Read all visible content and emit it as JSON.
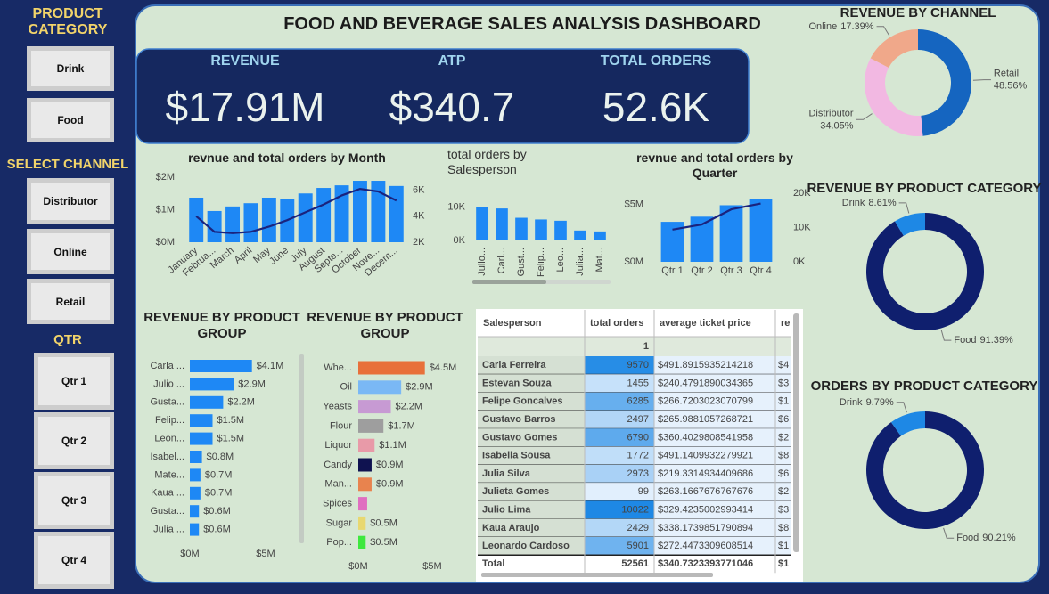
{
  "sidebar": {
    "groups": [
      {
        "title": "PRODUCT CATEGORY",
        "buttons": [
          "Drink",
          "Food"
        ]
      },
      {
        "title": "SELECT CHANNEL",
        "buttons": [
          "Distributor",
          "Online",
          "Retail"
        ]
      },
      {
        "title": "QTR",
        "buttons": [
          "Qtr 1",
          "Qtr 2",
          "Qtr 3",
          "Qtr 4"
        ]
      }
    ]
  },
  "header": {
    "title": "FOOD AND BEVERAGE SALES ANALYSIS DASHBOARD"
  },
  "kpis": [
    {
      "label": "REVENUE",
      "value": "$17.91M"
    },
    {
      "label": "ATP",
      "value": "$340.7"
    },
    {
      "label": "TOTAL ORDERS",
      "value": "52.6K"
    }
  ],
  "chart_data": [
    {
      "type": "combo",
      "title": "revnue and total orders by Month",
      "categories": [
        "January",
        "Februa...",
        "March",
        "April",
        "May",
        "June",
        "July",
        "August",
        "Septe...",
        "October",
        "Nove...",
        "Decem..."
      ],
      "series": [
        {
          "color": "#1e88f5",
          "values": [
            1370000,
            960000,
            1100000,
            1200000,
            1370000,
            1340000,
            1500000,
            1670000,
            1750000,
            1890000,
            1890000,
            1730000
          ]
        },
        {
          "type": "line",
          "axis": "y2",
          "color": "#1a237e",
          "values": [
            4000,
            2800,
            2700,
            2800,
            3200,
            3700,
            4300,
            4900,
            5600,
            6100,
            5900,
            5200
          ]
        }
      ],
      "ylim": [
        0,
        2000000
      ],
      "yticks": [
        {
          "value": 0,
          "label": "$0M"
        },
        {
          "value": 1000000,
          "label": "$1M"
        },
        {
          "value": 2000000,
          "label": "$2M"
        }
      ],
      "y2lim": [
        2000,
        7000
      ],
      "y2ticks": [
        {
          "value": 2000,
          "label": "2K"
        },
        {
          "value": 4000,
          "label": "4K"
        },
        {
          "value": 6000,
          "label": "6K"
        }
      ]
    },
    {
      "type": "bar",
      "title": "total orders by Salesperson",
      "categories": [
        "Julio...",
        "Carl...",
        "Gust...",
        "Felip...",
        "Leo...",
        "Julia...",
        "Mat..."
      ],
      "values": [
        10022,
        9570,
        6790,
        6285,
        5901,
        2973,
        2700
      ],
      "color": "#1e88f5",
      "ylim": [
        0,
        12000
      ],
      "yticks": [
        {
          "value": 0,
          "label": "0K"
        },
        {
          "value": 10000,
          "label": "10K"
        }
      ]
    },
    {
      "type": "combo",
      "title": "revnue and total orders by Quarter",
      "categories": [
        "Qtr 1",
        "Qtr 2",
        "Qtr 3",
        "Qtr 4"
      ],
      "series": [
        {
          "color": "#1e88f5",
          "values": [
            3500000,
            3950000,
            4950000,
            5500000
          ]
        },
        {
          "type": "line",
          "axis": "y2",
          "color": "#1a237e",
          "values": [
            9400,
            10900,
            15300,
            17000
          ]
        }
      ],
      "ylim": [
        0,
        6000000
      ],
      "yticks": [
        {
          "value": 0,
          "label": "$0M"
        },
        {
          "value": 5000000,
          "label": "$5M"
        }
      ],
      "y2lim": [
        0,
        20000
      ],
      "y2ticks": [
        {
          "value": 0,
          "label": "0K"
        },
        {
          "value": 10000,
          "label": "10K"
        },
        {
          "value": 20000,
          "label": "20K"
        }
      ]
    },
    {
      "type": "donut",
      "title": "REVENUE BY CHANNEL",
      "categories": [
        "Retail",
        "Distributor",
        "Online"
      ],
      "values": [
        48.56,
        34.05,
        17.39
      ],
      "value_labels": [
        "48.56%",
        "34.05%",
        "17.39%"
      ],
      "colors": [
        "#1565c0",
        "#f2b8e2",
        "#f0a88a"
      ]
    },
    {
      "type": "donut",
      "title": "REVENUE BY PRODUCT CATEGORY",
      "categories": [
        "Food",
        "Drink"
      ],
      "values": [
        91.39,
        8.61
      ],
      "value_labels": [
        "91.39%",
        "8.61%"
      ],
      "colors": [
        "#0f1f6e",
        "#1e88e5"
      ]
    },
    {
      "type": "donut",
      "title": "ORDERS BY PRODUCT CATEGORY",
      "categories": [
        "Food",
        "Drink"
      ],
      "values": [
        90.21,
        9.79
      ],
      "value_labels": [
        "90.21%",
        "9.79%"
      ],
      "colors": [
        "#0f1f6e",
        "#1e88e5"
      ]
    },
    {
      "type": "hbar",
      "title": "REVENUE BY PRODUCT GROUP",
      "categories": [
        "Carla ...",
        "Julio ...",
        "Gusta...",
        "Felip...",
        "Leon...",
        "Isabel...",
        "Mate...",
        "Kaua ...",
        "Gusta...",
        "Julia ..."
      ],
      "values": [
        4100000,
        2900000,
        2200000,
        1500000,
        1500000,
        800000,
        700000,
        700000,
        600000,
        600000
      ],
      "value_labels": [
        "$4.1M",
        "$2.9M",
        "$2.2M",
        "$1.5M",
        "$1.5M",
        "$0.8M",
        "$0.7M",
        "$0.7M",
        "$0.6M",
        "$0.6M"
      ],
      "color": "#1e88f5",
      "xlim": [
        0,
        5000000
      ],
      "xticks": [
        {
          "value": 0,
          "label": "$0M"
        },
        {
          "value": 5000000,
          "label": "$5M"
        }
      ]
    },
    {
      "type": "hbar",
      "title": "REVENUE BY PRODUCT GROUP",
      "categories": [
        "Whe...",
        "Oil",
        "Yeasts",
        "Flour",
        "Liquor",
        "Candy",
        "Man...",
        "Spices",
        "Sugar",
        "Pop..."
      ],
      "values": [
        4500000,
        2900000,
        2200000,
        1700000,
        1100000,
        900000,
        900000,
        600000,
        500000,
        500000
      ],
      "value_labels": [
        "$4.5M",
        "$2.9M",
        "$2.2M",
        "$1.7M",
        "$1.1M",
        "$0.9M",
        "$0.9M",
        null,
        "$0.5M",
        "$0.5M"
      ],
      "colors": [
        "#e8703a",
        "#7ab8f5",
        "#c79ad3",
        "#9e9e9e",
        "#e89aa8",
        "#0f1250",
        "#e8834e",
        "#e06fc0",
        "#e8d870",
        "#3ee83e"
      ],
      "xlim": [
        0,
        5000000
      ],
      "xticks": [
        {
          "value": 0,
          "label": "$0M"
        },
        {
          "value": 5000000,
          "label": "$5M"
        }
      ]
    }
  ],
  "table": {
    "columns": [
      "Salesperson",
      "total orders",
      "average ticket price",
      "re"
    ],
    "subheader_orders": "1",
    "rows": [
      [
        "Carla Ferreira",
        9570,
        "$491.8915935214218",
        "$4"
      ],
      [
        "Estevan Souza",
        1455,
        "$240.4791890034365",
        "$3"
      ],
      [
        "Felipe Goncalves",
        6285,
        "$266.7203023070799",
        "$1"
      ],
      [
        "Gustavo Barros",
        2497,
        "$265.9881057268721",
        "$6"
      ],
      [
        "Gustavo Gomes",
        6790,
        "$360.4029808541958",
        "$2"
      ],
      [
        "Isabella Sousa",
        1772,
        "$491.1409932279921",
        "$8"
      ],
      [
        "Julia Silva",
        2973,
        "$219.3314934409686",
        "$6"
      ],
      [
        "Julieta Gomes",
        99,
        "$263.1667676767676",
        "$2"
      ],
      [
        "Julio Lima",
        10022,
        "$329.4235002993414",
        "$3"
      ],
      [
        "Kaua Araujo",
        2429,
        "$338.1739851790894",
        "$8"
      ],
      [
        "Leonardo Cardoso",
        5901,
        "$272.4473309608514",
        "$1"
      ]
    ],
    "total": [
      "Total",
      52561,
      "$340.7323393771046",
      "$1"
    ]
  }
}
